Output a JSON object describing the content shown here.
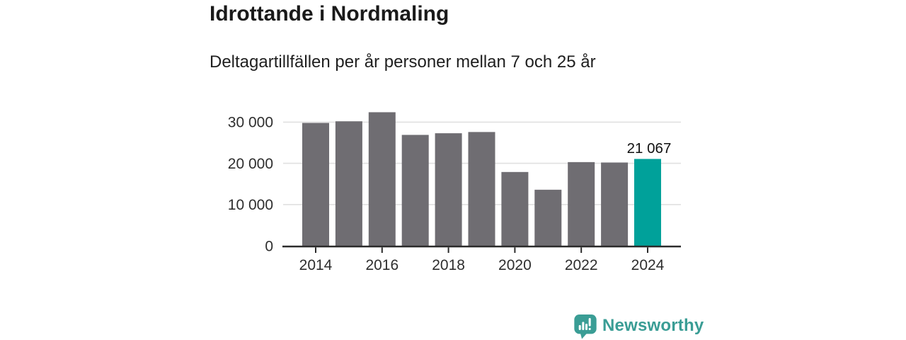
{
  "header": {
    "title": "Idrottande i Nordmaling",
    "subtitle": "Deltagartillfällen per år personer mellan 7 och 25 år"
  },
  "chart_data": {
    "type": "bar",
    "categories": [
      "2014",
      "2015",
      "2016",
      "2017",
      "2018",
      "2019",
      "2020",
      "2021",
      "2022",
      "2023",
      "2024"
    ],
    "values": [
      29800,
      30200,
      32400,
      26900,
      27300,
      27600,
      17900,
      13600,
      20300,
      20200,
      21067
    ],
    "highlight_index": 10,
    "annotation": {
      "index": 10,
      "text": "21 067"
    },
    "x_tick_indices": [
      0,
      2,
      4,
      6,
      8,
      10
    ],
    "x_tick_labels": [
      "2014",
      "2016",
      "2018",
      "2020",
      "2022",
      "2024"
    ],
    "y_ticks": [
      0,
      10000,
      20000,
      30000
    ],
    "y_tick_labels": [
      "0",
      "10 000",
      "20 000",
      "30 000"
    ],
    "ylim": [
      0,
      34000
    ],
    "grid": true,
    "legend_position": "none",
    "colors": {
      "bar": "#6f6d72",
      "highlight": "#00a19a",
      "grid": "#e0e0e0",
      "axis": "#2b2b2b",
      "tick_text": "#2e2e2e",
      "annotation_text": "#111111"
    }
  },
  "branding": {
    "logo_text": "Newsworthy",
    "color": "#3a9d95",
    "icon": "newsworthy-speech-bubble-chart-icon"
  }
}
